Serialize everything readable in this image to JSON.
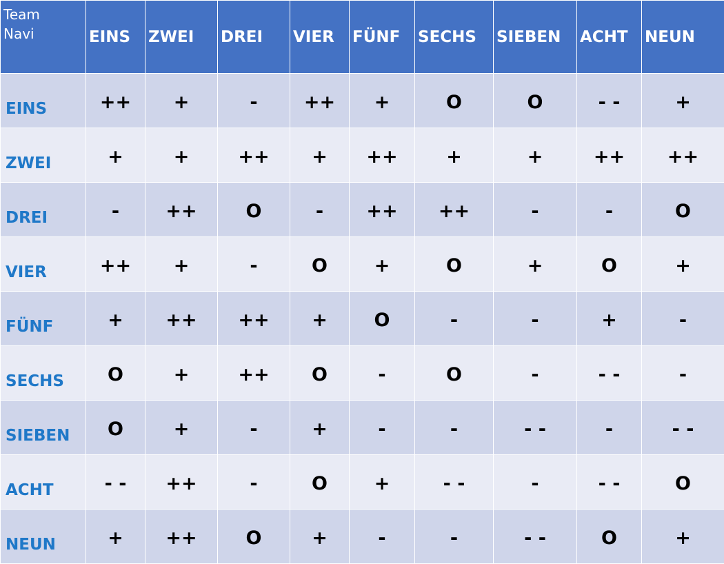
{
  "corner": {
    "line1": "Team",
    "line2": "Navi"
  },
  "columns": [
    "EINS",
    "ZWEI",
    "DREI",
    "VIER",
    "FÜNF",
    "SECHS",
    "SIEBEN",
    "ACHT",
    "NEUN"
  ],
  "rows": [
    {
      "label": "EINS",
      "cells": [
        "++",
        "+",
        "-",
        "++",
        "+",
        "O",
        "O",
        "- -",
        "+"
      ]
    },
    {
      "label": "ZWEI",
      "cells": [
        "+",
        "+",
        "++",
        "+",
        "++",
        "+",
        "+",
        "++",
        "++"
      ]
    },
    {
      "label": "DREI",
      "cells": [
        "-",
        "++",
        "O",
        "-",
        "++",
        "++",
        "-",
        "-",
        "O"
      ]
    },
    {
      "label": "VIER",
      "cells": [
        "++",
        "+",
        "-",
        "O",
        "+",
        "O",
        "+",
        "O",
        "+"
      ]
    },
    {
      "label": "FÜNF",
      "cells": [
        "+",
        "++",
        "++",
        "+",
        "O",
        "-",
        "-",
        "+",
        "-"
      ]
    },
    {
      "label": "SECHS",
      "cells": [
        "O",
        "+",
        "++",
        "O",
        "-",
        "O",
        "-",
        "- -",
        "-"
      ]
    },
    {
      "label": "SIEBEN",
      "cells": [
        "O",
        "+",
        "-",
        "+",
        "-",
        "-",
        "- -",
        "-",
        "- -"
      ]
    },
    {
      "label": "ACHT",
      "cells": [
        "- -",
        "++",
        "-",
        "O",
        "+",
        "- -",
        "-",
        "- -",
        "O"
      ]
    },
    {
      "label": "NEUN",
      "cells": [
        "+",
        "++",
        "O",
        "+",
        "-",
        "-",
        "- -",
        "O",
        "+"
      ]
    }
  ]
}
